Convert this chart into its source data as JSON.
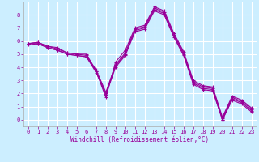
{
  "xlabel": "Windchill (Refroidissement éolien,°C)",
  "ylabel": "",
  "bg_color": "#cceeff",
  "grid_color": "#ffffff",
  "line_color": "#990099",
  "x_hours": [
    0,
    1,
    2,
    3,
    4,
    5,
    6,
    7,
    8,
    9,
    10,
    11,
    12,
    13,
    14,
    15,
    16,
    17,
    18,
    19,
    20,
    21,
    22,
    23
  ],
  "lines": [
    [
      5.8,
      5.9,
      5.6,
      5.5,
      5.1,
      5.0,
      5.0,
      3.7,
      1.7,
      4.4,
      5.3,
      7.0,
      7.2,
      8.6,
      8.3,
      6.6,
      5.2,
      3.0,
      2.6,
      2.5,
      0.2,
      1.8,
      1.5,
      0.9
    ],
    [
      5.8,
      5.9,
      5.6,
      5.4,
      5.1,
      5.0,
      4.9,
      3.8,
      2.1,
      4.2,
      5.1,
      6.9,
      7.1,
      8.5,
      8.2,
      6.5,
      5.1,
      2.9,
      2.5,
      2.4,
      0.1,
      1.7,
      1.4,
      0.8
    ],
    [
      5.8,
      5.8,
      5.5,
      5.3,
      5.0,
      4.9,
      4.8,
      3.6,
      2.0,
      4.1,
      5.0,
      6.8,
      7.0,
      8.4,
      8.1,
      6.4,
      5.0,
      2.8,
      2.4,
      2.3,
      0.0,
      1.6,
      1.3,
      0.7
    ],
    [
      5.7,
      5.8,
      5.5,
      5.3,
      5.0,
      4.9,
      4.8,
      3.7,
      1.9,
      4.0,
      4.9,
      6.7,
      6.9,
      8.3,
      8.0,
      6.3,
      4.9,
      2.7,
      2.3,
      2.2,
      0.0,
      1.5,
      1.2,
      0.6
    ]
  ],
  "xlim": [
    -0.5,
    23.5
  ],
  "ylim": [
    -0.5,
    9.0
  ],
  "xtick_labels": [
    "0",
    "1",
    "2",
    "3",
    "4",
    "5",
    "6",
    "7",
    "8",
    "9",
    "10",
    "11",
    "12",
    "13",
    "14",
    "15",
    "16",
    "17",
    "18",
    "19",
    "20",
    "21",
    "22",
    "23"
  ],
  "ytick_labels": [
    "0",
    "1",
    "2",
    "3",
    "4",
    "5",
    "6",
    "7",
    "8"
  ],
  "font_color": "#990099",
  "tick_fontsize": 5.0,
  "label_fontsize": 5.5
}
